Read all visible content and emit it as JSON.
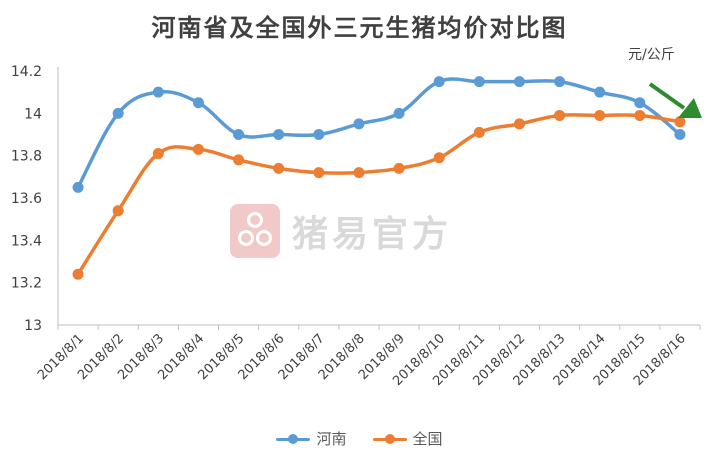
{
  "chart_data": {
    "type": "line",
    "title": "河南省及全国外三元生猪均价对比图",
    "unit_label": "元/公斤",
    "categories": [
      "2018/8/1",
      "2018/8/2",
      "2018/8/3",
      "2018/8/4",
      "2018/8/5",
      "2018/8/6",
      "2018/8/7",
      "2018/8/8",
      "2018/8/9",
      "2018/8/10",
      "2018/8/11",
      "2018/8/12",
      "2018/8/13",
      "2018/8/14",
      "2018/8/15",
      "2018/8/16"
    ],
    "series": [
      {
        "name": "河南",
        "color": "#5b9bd5",
        "values": [
          13.65,
          14.0,
          14.1,
          14.05,
          13.9,
          13.9,
          13.9,
          13.95,
          14.0,
          14.15,
          14.15,
          14.15,
          14.15,
          14.1,
          14.05,
          13.9
        ]
      },
      {
        "name": "全国",
        "color": "#ed7d31",
        "values": [
          13.24,
          13.54,
          13.81,
          13.83,
          13.78,
          13.74,
          13.72,
          13.72,
          13.74,
          13.79,
          13.91,
          13.95,
          13.99,
          13.99,
          13.99,
          13.96
        ]
      }
    ],
    "ylim": [
      13,
      14.2
    ],
    "yticks": [
      "13",
      "13.2",
      "13.4",
      "13.6",
      "13.8",
      "14",
      "14.2"
    ],
    "grid": false,
    "legend_position": "bottom",
    "arrow_color": "#2e8b2e"
  },
  "watermark": {
    "text": "猪易官方"
  }
}
